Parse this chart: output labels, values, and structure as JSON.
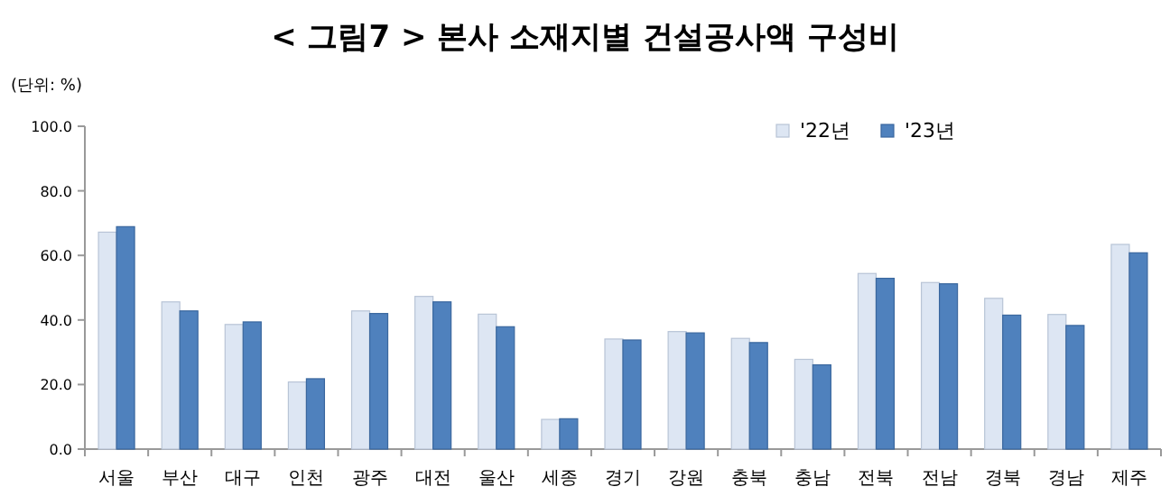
{
  "chart_data": {
    "type": "bar",
    "title": "< 그림7 > 본사 소재지별 건설공사액 구성비",
    "ylabel": "(단위: %)",
    "categories": [
      "서울",
      "부산",
      "대구",
      "인천",
      "광주",
      "대전",
      "울산",
      "세종",
      "경기",
      "강원",
      "충북",
      "충남",
      "전북",
      "전남",
      "경북",
      "경남",
      "제주"
    ],
    "series": [
      {
        "name": "'22년",
        "color": "#dde6f3",
        "values": [
          67.2,
          45.6,
          38.6,
          20.8,
          42.8,
          47.3,
          41.8,
          9.2,
          34.1,
          36.4,
          34.3,
          27.8,
          54.4,
          51.6,
          46.7,
          41.7,
          63.4
        ]
      },
      {
        "name": "'23년",
        "color": "#4f81bd",
        "values": [
          68.9,
          42.8,
          39.4,
          21.8,
          42.0,
          45.6,
          37.9,
          9.4,
          33.8,
          36.0,
          33.0,
          26.1,
          52.9,
          51.2,
          41.5,
          38.3,
          60.8
        ]
      }
    ],
    "ylim": [
      0,
      100
    ],
    "yticks": [
      {
        "value": 0,
        "label": "0.0"
      },
      {
        "value": 20,
        "label": "20.0"
      },
      {
        "value": 40,
        "label": "40.0"
      },
      {
        "value": 60,
        "label": "60.0"
      },
      {
        "value": 80,
        "label": "80.0"
      },
      {
        "value": 100,
        "label": "100.0"
      }
    ],
    "legend": "top right",
    "grid": false
  }
}
